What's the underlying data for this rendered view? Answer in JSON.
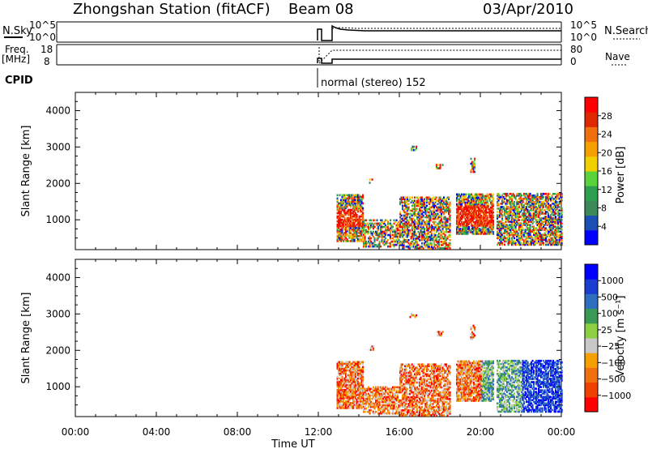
{
  "header": {
    "station": "Zhongshan Station (fitACF)",
    "beam": "Beam 08",
    "date": "03/Apr/2010"
  },
  "nsky_panel": {
    "left_label": "N.Sky",
    "left_ticks": [
      "10^5",
      "10^0"
    ],
    "right_ticks": [
      "10^5",
      "10^0"
    ],
    "right_label": "N.Search"
  },
  "freq_panel": {
    "left_label_1": "Freq.",
    "left_label_2": "[MHz]",
    "left_ticks": [
      "18",
      "8"
    ],
    "right_ticks": [
      "80",
      "0"
    ],
    "right_label": "Nave"
  },
  "cpid": {
    "label": "CPID",
    "mode": "normal (stereo) 152"
  },
  "colors": {
    "power": [
      "#0000ff",
      "#1a4fb5",
      "#3a8a5a",
      "#2e9e50",
      "#5ad23c",
      "#f0d000",
      "#f5a000",
      "#f07010",
      "#e02800",
      "#ff0000"
    ],
    "velocity": [
      "#ff0000",
      "#f04000",
      "#f07010",
      "#f5a000",
      "#c8c8c8",
      "#8ad040",
      "#3a9a55",
      "#2e6fbf",
      "#1a3fd0",
      "#0000ff"
    ]
  },
  "chart_data": [
    {
      "type": "heatmap",
      "name": "power",
      "xlabel": "",
      "ylabel": "Slant Range [km]",
      "x_ticks": [
        "00:00",
        "04:00",
        "08:00",
        "12:00",
        "16:00",
        "20:00",
        "00:00"
      ],
      "xlim_hours": [
        0,
        24
      ],
      "ylim_km": [
        180,
        4500
      ],
      "y_ticks": [
        1000,
        2000,
        3000,
        4000
      ],
      "colorbar_label": "Power [dB]",
      "colorbar_ticks": [
        "28",
        "24",
        "20",
        "16",
        "12",
        "8",
        "4"
      ],
      "data_start_hour": 12.9,
      "data_end_hour": 24
    },
    {
      "type": "heatmap",
      "name": "velocity",
      "xlabel": "Time UT",
      "ylabel": "Slant Range [km]",
      "x_ticks": [
        "00:00",
        "04:00",
        "08:00",
        "12:00",
        "16:00",
        "20:00",
        "00:00"
      ],
      "xlim_hours": [
        0,
        24
      ],
      "ylim_km": [
        180,
        4500
      ],
      "y_ticks": [
        1000,
        2000,
        3000,
        4000
      ],
      "colorbar_label": "Velocity [m s⁻¹]",
      "colorbar_ticks": [
        "1000",
        "500",
        "100",
        "25",
        "−25",
        "−100",
        "−500",
        "−1000"
      ],
      "data_start_hour": 12.9,
      "data_end_hour": 24
    }
  ]
}
